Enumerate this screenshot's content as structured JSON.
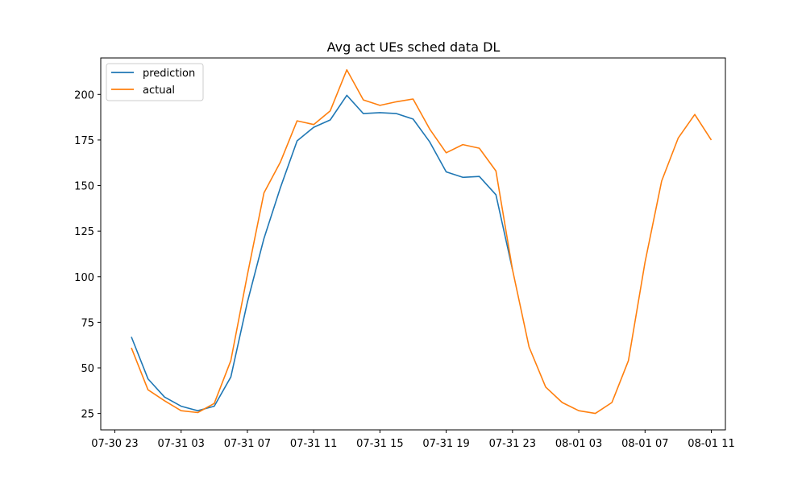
{
  "chart_data": {
    "type": "line",
    "title": "Avg act UEs sched data DL",
    "xlabel": "",
    "ylabel": "",
    "grid": false,
    "legend_position": "upper-left",
    "x_tick_labels": [
      "07-30 23",
      "07-31 03",
      "07-31 07",
      "07-31 11",
      "07-31 15",
      "07-31 19",
      "07-31 23",
      "08-01 03",
      "08-01 07",
      "08-01 11"
    ],
    "y_ticks": [
      25,
      50,
      75,
      100,
      125,
      150,
      175,
      200
    ],
    "xlim": [
      "07-30 22:09",
      "08-01 11:51"
    ],
    "ylim": [
      16,
      220
    ],
    "series": [
      {
        "name": "prediction",
        "color": "#1f77b4",
        "x": [
          "07-31 00",
          "07-31 01",
          "07-31 02",
          "07-31 03",
          "07-31 04",
          "07-31 05",
          "07-31 06",
          "07-31 07",
          "07-31 08",
          "07-31 09",
          "07-31 10",
          "07-31 11",
          "07-31 12",
          "07-31 13",
          "07-31 14",
          "07-31 15",
          "07-31 16",
          "07-31 17",
          "07-31 18",
          "07-31 19",
          "07-31 20",
          "07-31 21",
          "07-31 22",
          "07-31 23"
        ],
        "values": [
          67,
          44,
          34,
          29,
          26.5,
          29,
          45,
          86,
          121,
          149,
          174.5,
          182,
          186,
          199.5,
          189.5,
          190,
          189.5,
          186.5,
          174,
          157.5,
          154.5,
          155,
          145,
          104
        ]
      },
      {
        "name": "actual",
        "color": "#ff7f0e",
        "x": [
          "07-31 00",
          "07-31 01",
          "07-31 02",
          "07-31 03",
          "07-31 04",
          "07-31 05",
          "07-31 06",
          "07-31 07",
          "07-31 08",
          "07-31 09",
          "07-31 10",
          "07-31 11",
          "07-31 12",
          "07-31 13",
          "07-31 14",
          "07-31 15",
          "07-31 16",
          "07-31 17",
          "07-31 18",
          "07-31 19",
          "07-31 20",
          "07-31 21",
          "07-31 22",
          "07-31 23",
          "08-01 00",
          "08-01 01",
          "08-01 02",
          "08-01 03",
          "08-01 04",
          "08-01 05",
          "08-01 06",
          "08-01 07",
          "08-01 08",
          "08-01 09",
          "08-01 10",
          "08-01 11"
        ],
        "values": [
          61,
          38,
          32,
          26.5,
          25.5,
          30.5,
          54,
          101,
          146,
          163,
          185.5,
          183.5,
          191,
          213.5,
          197,
          194,
          196,
          197.5,
          181,
          168,
          172.5,
          170.5,
          158,
          104,
          61.5,
          39.5,
          31,
          26.5,
          25,
          31,
          54,
          108,
          152.5,
          176,
          189,
          175
        ]
      }
    ]
  }
}
